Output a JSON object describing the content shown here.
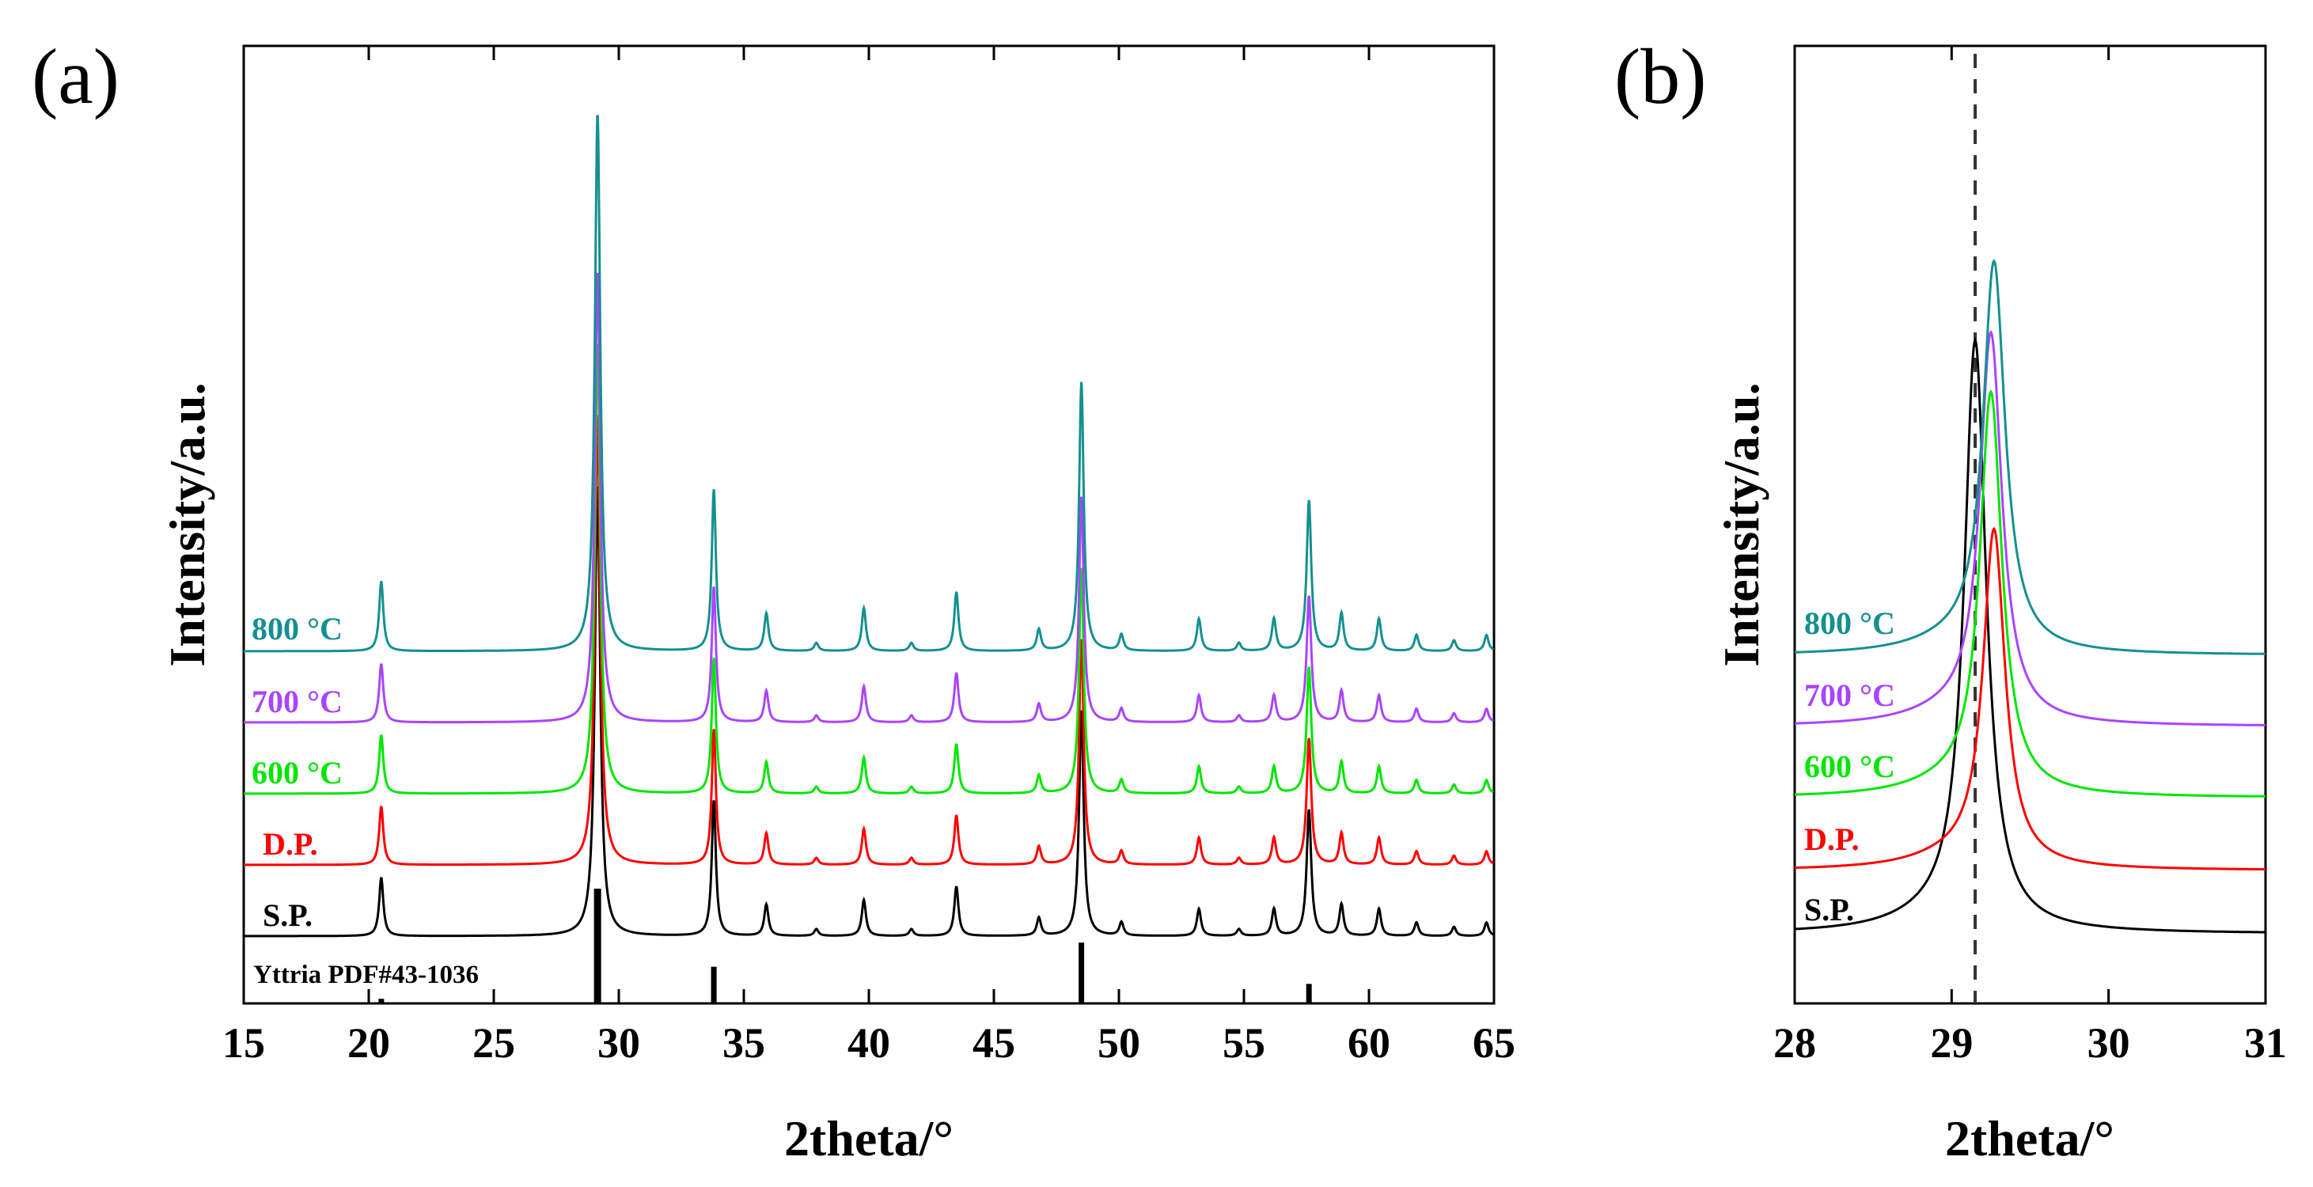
{
  "figure": {
    "panels": [
      {
        "panel_label": "(a)",
        "xlabel": "2theta/°",
        "ylabel": "Intensity/a.u.",
        "xlim": [
          15,
          65
        ],
        "xticks": [
          "15",
          "20",
          "25",
          "30",
          "35",
          "40",
          "45",
          "50",
          "55",
          "60",
          "65"
        ],
        "reference_label": "Yttria PDF#43-1036"
      },
      {
        "panel_label": "(b)",
        "xlabel": "2theta/°",
        "ylabel": "Intensity/a.u.",
        "xlim": [
          28,
          31
        ],
        "xticks": [
          "28",
          "29",
          "30",
          "31"
        ],
        "dashed_line_x": 29.15
      }
    ]
  },
  "chart_data": [
    {
      "type": "line",
      "title": "(a)",
      "xlabel": "2theta/°",
      "ylabel": "Intensity/a.u.",
      "xlim": [
        15,
        65
      ],
      "series": [
        {
          "name": "S.P.",
          "color": "#000000",
          "offset": 0
        },
        {
          "name": "D.P.",
          "color": "#ff0000",
          "offset": 1
        },
        {
          "name": "600 °C",
          "color": "#00e600",
          "offset": 2
        },
        {
          "name": "700 °C",
          "color": "#aa44ff",
          "offset": 3
        },
        {
          "name": "800 °C",
          "color": "#159090",
          "offset": 4
        }
      ],
      "peaks": [
        {
          "x": 20.5,
          "h": 0.13,
          "w": 0.1
        },
        {
          "x": 29.15,
          "h": 1.0,
          "w": 0.13
        },
        {
          "x": 33.8,
          "h": 0.3,
          "w": 0.1
        },
        {
          "x": 35.9,
          "h": 0.07,
          "w": 0.1
        },
        {
          "x": 37.9,
          "h": 0.015,
          "w": 0.1
        },
        {
          "x": 39.8,
          "h": 0.08,
          "w": 0.1
        },
        {
          "x": 41.7,
          "h": 0.015,
          "w": 0.1
        },
        {
          "x": 43.5,
          "h": 0.11,
          "w": 0.1
        },
        {
          "x": 46.8,
          "h": 0.04,
          "w": 0.1
        },
        {
          "x": 48.5,
          "h": 0.5,
          "w": 0.11
        },
        {
          "x": 50.1,
          "h": 0.03,
          "w": 0.1
        },
        {
          "x": 53.2,
          "h": 0.06,
          "w": 0.1
        },
        {
          "x": 54.8,
          "h": 0.015,
          "w": 0.1
        },
        {
          "x": 56.2,
          "h": 0.06,
          "w": 0.1
        },
        {
          "x": 57.6,
          "h": 0.28,
          "w": 0.11
        },
        {
          "x": 58.9,
          "h": 0.07,
          "w": 0.1
        },
        {
          "x": 60.4,
          "h": 0.06,
          "w": 0.1
        },
        {
          "x": 61.9,
          "h": 0.03,
          "w": 0.1
        },
        {
          "x": 63.4,
          "h": 0.02,
          "w": 0.1
        },
        {
          "x": 64.7,
          "h": 0.03,
          "w": 0.1
        }
      ],
      "reference_peaks": [
        {
          "x": 20.5,
          "h": 0.04
        },
        {
          "x": 29.15,
          "h": 1.0
        },
        {
          "x": 33.8,
          "h": 0.32
        },
        {
          "x": 48.5,
          "h": 0.53
        },
        {
          "x": 57.6,
          "h": 0.17
        }
      ]
    },
    {
      "type": "line",
      "title": "(b)",
      "xlabel": "2theta/°",
      "ylabel": "Intensity/a.u.",
      "xlim": [
        28,
        31
      ],
      "series": [
        {
          "name": "S.P.",
          "color": "#000000",
          "peak_x": 29.15,
          "peak_h": 1.0
        },
        {
          "name": "D.P.",
          "color": "#ff0000",
          "peak_x": 29.27,
          "peak_h": 0.57
        },
        {
          "name": "600 °C",
          "color": "#00e600",
          "peak_x": 29.25,
          "peak_h": 0.68
        },
        {
          "name": "700 °C",
          "color": "#aa44ff",
          "peak_x": 29.25,
          "peak_h": 0.66
        },
        {
          "name": "800 °C",
          "color": "#159090",
          "peak_x": 29.27,
          "peak_h": 0.66
        }
      ]
    }
  ]
}
